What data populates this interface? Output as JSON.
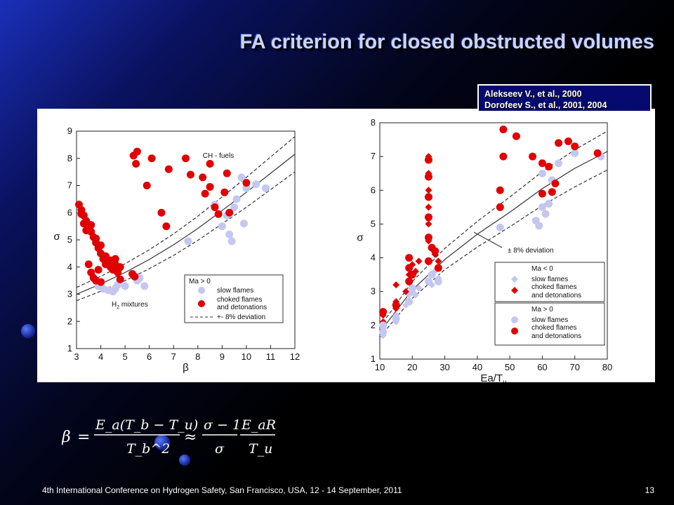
{
  "slide": {
    "title": "FA criterion for closed obstructed volumes",
    "references": [
      "Alekseev V., et al., 2000",
      "Dorofeev S., et al., 2001, 2004"
    ],
    "footer": "4th International Conference on Hydrogen Safety, San Francisco, USA, 12 - 14 September, 2011",
    "page_number": "13",
    "formula": {
      "lhs": "β",
      "numerator1": "E_a(T_b − T_u)",
      "denominator1": "T_b^2",
      "approx": "≈",
      "numerator2": "σ − 1",
      "denominator2": "σ",
      "numerator3": "E_aR",
      "denominator3": "T_u"
    },
    "colors": {
      "choked": "#e00000",
      "slow": "#c4c8f0",
      "title": "#c8d4ff",
      "ref_box": "#060a6e"
    }
  },
  "chart_data": [
    {
      "type": "scatter",
      "xlabel": "β",
      "ylabel": "σ",
      "xlim": [
        3,
        12
      ],
      "ylim": [
        1,
        9
      ],
      "xticks": [
        "3",
        "4",
        "5",
        "6",
        "7",
        "8",
        "9",
        "10",
        "11",
        "12"
      ],
      "yticks": [
        "1",
        "2",
        "3",
        "4",
        "5",
        "6",
        "7",
        "8",
        "9"
      ],
      "annotations": [
        "CH - fuels",
        "H2 mixtures"
      ],
      "h2_subscript": "2",
      "legend": {
        "title": "Ma > 0",
        "items": [
          "slow flames",
          "choked flames",
          "and detonations",
          "+- 8% deviation"
        ],
        "placement": "bottom-right"
      },
      "curve": {
        "name": "criterion",
        "x": [
          3,
          4,
          5,
          6,
          7,
          8,
          9,
          10,
          11,
          12
        ],
        "y": [
          3.0,
          3.38,
          3.8,
          4.28,
          4.82,
          5.42,
          6.08,
          6.75,
          7.45,
          8.15
        ]
      },
      "curve_upper": {
        "x": [
          3,
          4,
          5,
          6,
          7,
          8,
          9,
          10,
          11,
          12
        ],
        "y": [
          3.25,
          3.66,
          4.12,
          4.64,
          5.22,
          5.87,
          6.58,
          7.3,
          8.05,
          8.8
        ]
      },
      "curve_lower": {
        "x": [
          3,
          4,
          5,
          6,
          7,
          8,
          9,
          10,
          11,
          12
        ],
        "y": [
          2.76,
          3.11,
          3.5,
          3.94,
          4.43,
          4.98,
          5.59,
          6.2,
          6.85,
          7.5
        ]
      },
      "series": [
        {
          "name": "slow flames",
          "marker": "circle",
          "color": "#c4c8f0",
          "points": [
            [
              3.9,
              3.3
            ],
            [
              4.1,
              3.2
            ],
            [
              4.3,
              3.15
            ],
            [
              4.5,
              3.1
            ],
            [
              4.7,
              3.35
            ],
            [
              5.0,
              3.3
            ],
            [
              5.5,
              3.5
            ],
            [
              5.8,
              3.3
            ],
            [
              5.6,
              3.6
            ],
            [
              4.0,
              3.4
            ],
            [
              4.6,
              3.2
            ],
            [
              7.6,
              4.95
            ],
            [
              9.0,
              5.5
            ],
            [
              9.3,
              5.2
            ],
            [
              9.4,
              4.95
            ],
            [
              9.2,
              5.9
            ],
            [
              9.5,
              6.2
            ],
            [
              9.8,
              7.3
            ],
            [
              10.0,
              6.9
            ],
            [
              10.4,
              7.05
            ],
            [
              10.8,
              6.9
            ],
            [
              9.6,
              6.5
            ],
            [
              8.7,
              6.3
            ],
            [
              9.9,
              5.6
            ]
          ]
        },
        {
          "name": "choked flames and detonations",
          "marker": "circle",
          "color": "#e00000",
          "points": [
            [
              3.1,
              6.3
            ],
            [
              3.2,
              6.1
            ],
            [
              3.3,
              5.9
            ],
            [
              3.4,
              5.7
            ],
            [
              3.5,
              5.5
            ],
            [
              3.6,
              5.3
            ],
            [
              3.7,
              5.1
            ],
            [
              3.8,
              4.9
            ],
            [
              3.9,
              4.7
            ],
            [
              4.0,
              4.5
            ],
            [
              4.1,
              4.3
            ],
            [
              4.2,
              4.1
            ],
            [
              4.3,
              4.2
            ],
            [
              4.4,
              4.0
            ],
            [
              4.5,
              3.9
            ],
            [
              4.6,
              4.1
            ],
            [
              4.7,
              3.8
            ],
            [
              3.5,
              4.1
            ],
            [
              3.6,
              3.8
            ],
            [
              3.7,
              3.6
            ],
            [
              3.8,
              3.5
            ],
            [
              3.9,
              3.9
            ],
            [
              4.0,
              3.45
            ],
            [
              3.2,
              5.95
            ],
            [
              3.3,
              5.6
            ],
            [
              3.4,
              5.35
            ],
            [
              3.6,
              5.55
            ],
            [
              3.8,
              5.05
            ],
            [
              4.0,
              4.8
            ],
            [
              4.2,
              4.4
            ],
            [
              4.4,
              4.25
            ],
            [
              4.6,
              4.3
            ],
            [
              4.8,
              4.0
            ],
            [
              5.3,
              3.75
            ],
            [
              5.4,
              3.65
            ],
            [
              4.8,
              3.55
            ],
            [
              5.35,
              8.1
            ],
            [
              5.5,
              8.25
            ],
            [
              5.45,
              7.8
            ],
            [
              6.1,
              8.0
            ],
            [
              5.9,
              7.0
            ],
            [
              6.5,
              6.0
            ],
            [
              6.8,
              7.6
            ],
            [
              7.5,
              8.0
            ],
            [
              7.7,
              7.4
            ],
            [
              8.2,
              7.3
            ],
            [
              8.5,
              7.8
            ],
            [
              8.3,
              6.7
            ],
            [
              8.5,
              6.95
            ],
            [
              8.7,
              6.2
            ],
            [
              8.85,
              5.95
            ],
            [
              9.1,
              6.75
            ],
            [
              9.2,
              7.45
            ],
            [
              10.0,
              7.1
            ],
            [
              6.7,
              5.5
            ],
            [
              9.3,
              6.0
            ]
          ]
        }
      ]
    },
    {
      "type": "scatter",
      "xlabel": "Ea/T",
      "xlabel_subscript": "u",
      "ylabel": "σ",
      "xlim": [
        10,
        80
      ],
      "ylim": [
        1,
        8
      ],
      "xticks": [
        "10",
        "20",
        "30",
        "40",
        "50",
        "60",
        "70",
        "80"
      ],
      "yticks": [
        "1",
        "2",
        "3",
        "4",
        "5",
        "6",
        "7",
        "8"
      ],
      "annotations": [
        "± 8% deviation"
      ],
      "legend": {
        "groups": [
          {
            "title": "Ma < 0",
            "items": [
              "slow flames",
              "choked flames",
              "and detonations"
            ]
          },
          {
            "title": "Ma > 0",
            "items": [
              "slow flames",
              "choked flames",
              "and detonations"
            ]
          }
        ],
        "placement": "bottom-right"
      },
      "curve": {
        "name": "criterion",
        "x": [
          10,
          20,
          30,
          40,
          50,
          60,
          70,
          80
        ],
        "y": [
          1.8,
          3.05,
          3.95,
          4.7,
          5.35,
          6.05,
          6.65,
          7.15
        ]
      },
      "curve_upper": {
        "x": [
          10,
          20,
          30,
          40,
          50,
          60,
          70,
          80
        ],
        "y": [
          1.95,
          3.3,
          4.28,
          5.08,
          5.8,
          6.55,
          7.2,
          7.75
        ]
      },
      "curve_lower": {
        "x": [
          10,
          20,
          30,
          40,
          50,
          60,
          70,
          80
        ],
        "y": [
          1.65,
          2.8,
          3.65,
          4.32,
          4.92,
          5.55,
          6.1,
          6.6
        ]
      },
      "series": [
        {
          "name": "Ma < 0 slow flames",
          "marker": "diamond",
          "color": "#c4c8f0",
          "points": [
            [
              11,
              1.7
            ],
            [
              11,
              1.9
            ],
            [
              15,
              2.1
            ],
            [
              15,
              2.3
            ],
            [
              18,
              2.6
            ],
            [
              19,
              2.9
            ],
            [
              20,
              3.0
            ],
            [
              21,
              2.9
            ],
            [
              22,
              3.1
            ],
            [
              25,
              3.3
            ],
            [
              26,
              3.2
            ],
            [
              28,
              3.4
            ],
            [
              27,
              3.6
            ]
          ]
        },
        {
          "name": "Ma < 0 choked flames and detonations",
          "marker": "diamond",
          "color": "#e00000",
          "points": [
            [
              11,
              2.3
            ],
            [
              11,
              2.1
            ],
            [
              15,
              2.5
            ],
            [
              15,
              2.7
            ],
            [
              15,
              3.2
            ],
            [
              18,
              3.0
            ],
            [
              19,
              3.5
            ],
            [
              20,
              3.8
            ],
            [
              21,
              3.6
            ],
            [
              22,
              3.9
            ],
            [
              25,
              4.5
            ],
            [
              25,
              5.0
            ],
            [
              25,
              5.5
            ],
            [
              25,
              6.0
            ],
            [
              25,
              6.5
            ],
            [
              25,
              7.0
            ],
            [
              27,
              4.1
            ],
            [
              28,
              3.9
            ]
          ]
        },
        {
          "name": "Ma > 0 slow flames",
          "marker": "circle",
          "color": "#c4c8f0",
          "points": [
            [
              11,
              1.8
            ],
            [
              11,
              2.0
            ],
            [
              15,
              2.2
            ],
            [
              19,
              2.7
            ],
            [
              20,
              3.1
            ],
            [
              25,
              3.3
            ],
            [
              26,
              3.5
            ],
            [
              28,
              3.3
            ],
            [
              47,
              4.9
            ],
            [
              58,
              5.1
            ],
            [
              59,
              4.95
            ],
            [
              60,
              5.5
            ],
            [
              61,
              5.3
            ],
            [
              62,
              5.6
            ],
            [
              60,
              6.5
            ],
            [
              63,
              6.3
            ],
            [
              70,
              7.1
            ],
            [
              78,
              7.0
            ],
            [
              65,
              6.8
            ]
          ]
        },
        {
          "name": "Ma > 0 choked flames and detonations",
          "marker": "circle",
          "color": "#e00000",
          "points": [
            [
              11,
              2.4
            ],
            [
              15,
              2.6
            ],
            [
              19,
              3.3
            ],
            [
              19,
              3.7
            ],
            [
              19,
              4.0
            ],
            [
              20,
              3.5
            ],
            [
              25,
              3.9
            ],
            [
              25,
              4.6
            ],
            [
              25,
              5.2
            ],
            [
              25,
              5.8
            ],
            [
              25,
              6.4
            ],
            [
              25,
              6.9
            ],
            [
              26,
              4.3
            ],
            [
              27,
              4.2
            ],
            [
              28,
              3.7
            ],
            [
              47,
              5.5
            ],
            [
              47,
              6.0
            ],
            [
              48,
              7.0
            ],
            [
              48,
              7.8
            ],
            [
              52,
              7.6
            ],
            [
              57,
              7.0
            ],
            [
              60,
              5.9
            ],
            [
              60,
              6.8
            ],
            [
              62,
              6.7
            ],
            [
              63,
              5.95
            ],
            [
              64,
              6.2
            ],
            [
              65,
              7.4
            ],
            [
              68,
              7.45
            ],
            [
              70,
              7.3
            ],
            [
              77,
              7.1
            ]
          ]
        }
      ]
    }
  ]
}
